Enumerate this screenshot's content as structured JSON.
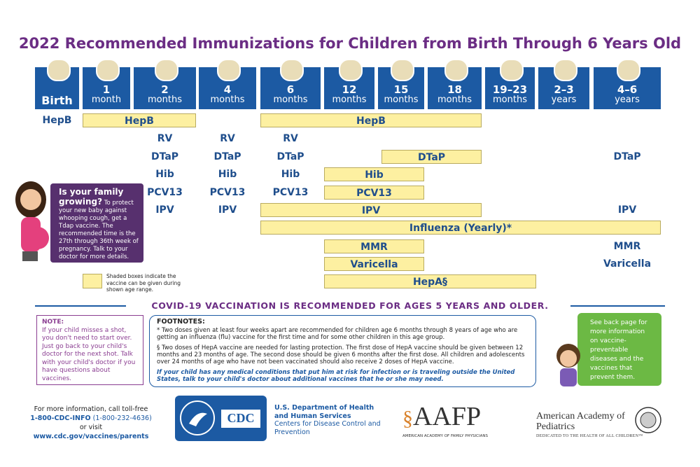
{
  "title": "2022 Recommended Immunizations for Children from Birth Through 6 Years Old",
  "columns": [
    {
      "number": "Birth"
    },
    {
      "number": "1",
      "unit": "month"
    },
    {
      "number": "2",
      "unit": "months"
    },
    {
      "number": "4",
      "unit": "months"
    },
    {
      "number": "6",
      "unit": "months"
    },
    {
      "number": "12",
      "unit": "months"
    },
    {
      "number": "15",
      "unit": "months"
    },
    {
      "number": "18",
      "unit": "months"
    },
    {
      "number": "19–23",
      "unit": "months"
    },
    {
      "number": "2–3",
      "unit": "years"
    },
    {
      "number": "4–6",
      "unit": "years"
    }
  ],
  "rows": [
    {
      "cells": [
        "HepB",
        "HepB",
        "HepB"
      ]
    },
    {
      "cells": [
        "RV",
        "RV",
        "RV"
      ]
    },
    {
      "cells": [
        "DTaP",
        "DTaP",
        "DTaP",
        "DTaP",
        "DTaP"
      ]
    },
    {
      "cells": [
        "Hib",
        "Hib",
        "Hib",
        "Hib"
      ]
    },
    {
      "cells": [
        "PCV13",
        "PCV13",
        "PCV13",
        "PCV13"
      ]
    },
    {
      "cells": [
        "IPV",
        "IPV",
        "IPV",
        "IPV"
      ]
    },
    {
      "cells": [
        "Influenza (Yearly)*"
      ]
    },
    {
      "cells": [
        "MMR",
        "MMR"
      ]
    },
    {
      "cells": [
        "Varicella",
        "Varicella"
      ]
    },
    {
      "cells": [
        "HepA§"
      ]
    }
  ],
  "pregnancy": {
    "heading": "Is your family growing?",
    "text": "To protect your new baby against whooping cough, get a Tdap vaccine. The recommended time is the 27th through 36th week of pregnancy. Talk to your doctor for more details."
  },
  "legend": "Shaded boxes indicate the vaccine can be given during shown age range.",
  "covid": "COVID-19 VACCINATION IS RECOMMENDED FOR AGES 5 YEARS AND OLDER.",
  "note": {
    "heading": "NOTE:",
    "text": "If your child misses a shot, you don't need to start over. Just go back to your child's doctor for the next shot. Talk with your child's doctor if you have questions about vaccines."
  },
  "footnotes": {
    "heading": "FOOTNOTES:",
    "items": [
      "* Two doses given at least four weeks apart are recommended for children age 6 months through 8 years of age who are getting an influenza (flu) vaccine for the first time and for some other children in this age group.",
      "§ Two doses of HepA vaccine are needed for lasting protection. The first dose of HepA vaccine should be given between 12 months and 23 months of age. The second dose should be given 6 months after the first dose. All children and adolescents over 24 months of age who have not been vaccinated should also receive 2 doses of HepA vaccine."
    ],
    "closing": "If your child has any medical conditions that put him at risk for infection or is traveling outside the United States, talk to your child's doctor about additional vaccines that he or she may need."
  },
  "side_box": "See back page for more information on vaccine-preventable diseases and the vaccines that prevent them.",
  "contact": {
    "line1": "For more information, call toll-free",
    "phone": "1-800-CDC-INFO",
    "phone_number": "(1-800-232-4636)",
    "or": "or visit",
    "url": "www.cdc.gov/vaccines/parents"
  },
  "cdc_logo": "CDC",
  "hhs": {
    "dept": "U.S. Department of Health and Human Services",
    "centers": "Centers for Disease Control and Prevention"
  },
  "aafp": {
    "name": "AAFP",
    "full": "AMERICAN ACADEMY OF FAMILY PHYSICIANS"
  },
  "aap": {
    "name": "American Academy of Pediatrics",
    "tagline": "DEDICATED TO THE HEALTH OF ALL CHILDREN™"
  }
}
